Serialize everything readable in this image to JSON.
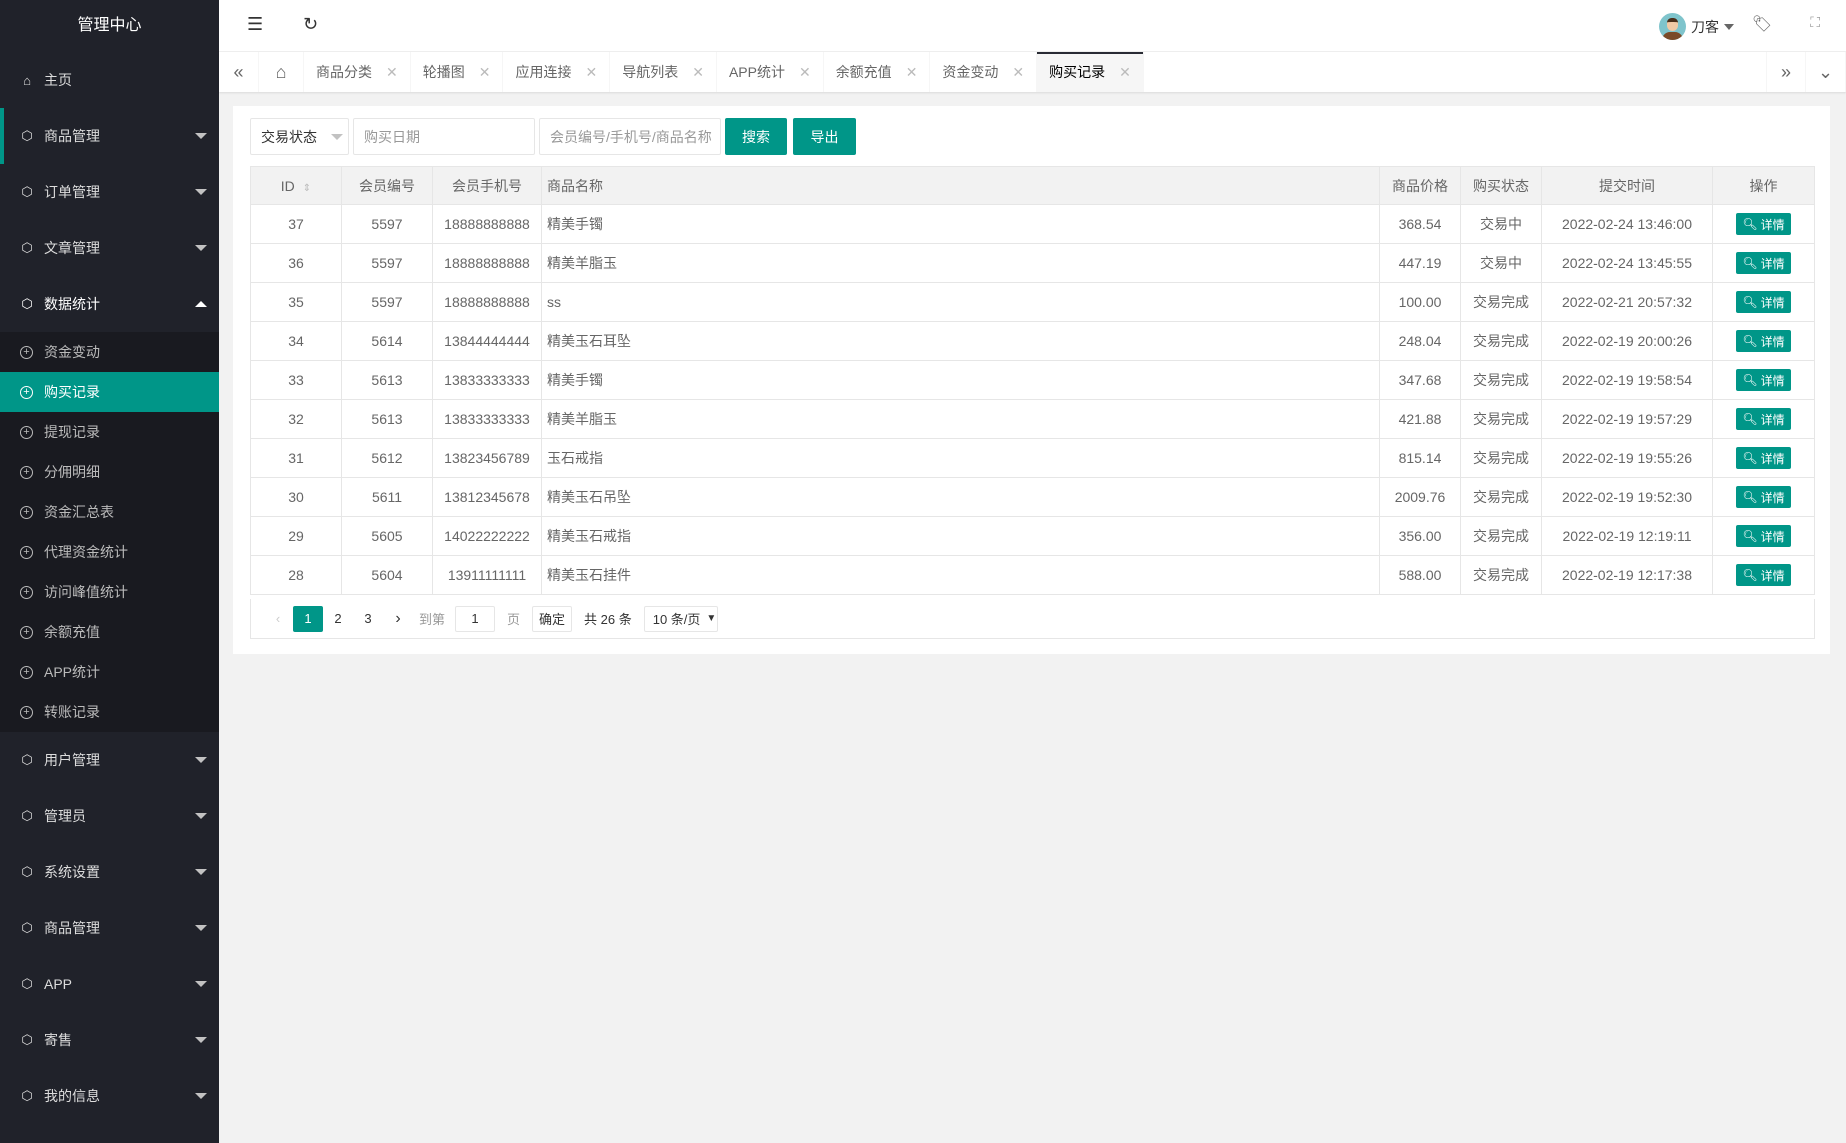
{
  "sidebar": {
    "title": "管理中心",
    "home": "主页",
    "groups_top": [
      "商品管理",
      "订单管理",
      "文章管理"
    ],
    "open_group": "数据统计",
    "sub_items": [
      "资金变动",
      "购买记录",
      "提现记录",
      "分佣明细",
      "资金汇总表",
      "代理资金统计",
      "访问峰值统计",
      "余额充值",
      "APP统计",
      "转账记录"
    ],
    "active_sub": "购买记录",
    "groups_bottom": [
      "用户管理",
      "管理员",
      "系统设置",
      "商品管理",
      "APP",
      "寄售",
      "我的信息"
    ]
  },
  "header": {
    "user_name": "刀客"
  },
  "tabs": [
    "商品分类",
    "轮播图",
    "应用连接",
    "导航列表",
    "APP统计",
    "余额充值",
    "资金变动",
    "购买记录"
  ],
  "active_tab": "购买记录",
  "toolbar": {
    "status_select": "交易状态",
    "date_placeholder": "购买日期",
    "keyword_placeholder": "会员编号/手机号/商品名称",
    "search": "搜索",
    "export": "导出"
  },
  "table": {
    "headers": [
      "ID",
      "会员编号",
      "会员手机号",
      "商品名称",
      "商品价格",
      "购买状态",
      "提交时间",
      "操作"
    ],
    "action_label": "详情",
    "rows": [
      [
        "37",
        "5597",
        "18888888888",
        "精美手镯",
        "368.54",
        "交易中",
        "2022-02-24 13:46:00"
      ],
      [
        "36",
        "5597",
        "18888888888",
        "精美羊脂玉",
        "447.19",
        "交易中",
        "2022-02-24 13:45:55"
      ],
      [
        "35",
        "5597",
        "18888888888",
        "ss",
        "100.00",
        "交易完成",
        "2022-02-21 20:57:32"
      ],
      [
        "34",
        "5614",
        "13844444444",
        "精美玉石耳坠",
        "248.04",
        "交易完成",
        "2022-02-19 20:00:26"
      ],
      [
        "33",
        "5613",
        "13833333333",
        "精美手镯",
        "347.68",
        "交易完成",
        "2022-02-19 19:58:54"
      ],
      [
        "32",
        "5613",
        "13833333333",
        "精美羊脂玉",
        "421.88",
        "交易完成",
        "2022-02-19 19:57:29"
      ],
      [
        "31",
        "5612",
        "13823456789",
        "玉石戒指",
        "815.14",
        "交易完成",
        "2022-02-19 19:55:26"
      ],
      [
        "30",
        "5611",
        "13812345678",
        "精美玉石吊坠",
        "2009.76",
        "交易完成",
        "2022-02-19 19:52:30"
      ],
      [
        "29",
        "5605",
        "14022222222",
        "精美玉石戒指",
        "356.00",
        "交易完成",
        "2022-02-19 12:19:11"
      ],
      [
        "28",
        "5604",
        "13911111111",
        "精美玉石挂件",
        "588.00",
        "交易完成",
        "2022-02-19 12:17:38"
      ]
    ]
  },
  "pagination": {
    "pages": [
      "1",
      "2",
      "3"
    ],
    "current": "1",
    "goto_label": "到第",
    "goto_value": "1",
    "page_unit": "页",
    "confirm": "确定",
    "total": "共 26 条",
    "page_size": "10 条/页"
  },
  "colors": {
    "accent": "#009688",
    "sidebar": "#20222a"
  }
}
